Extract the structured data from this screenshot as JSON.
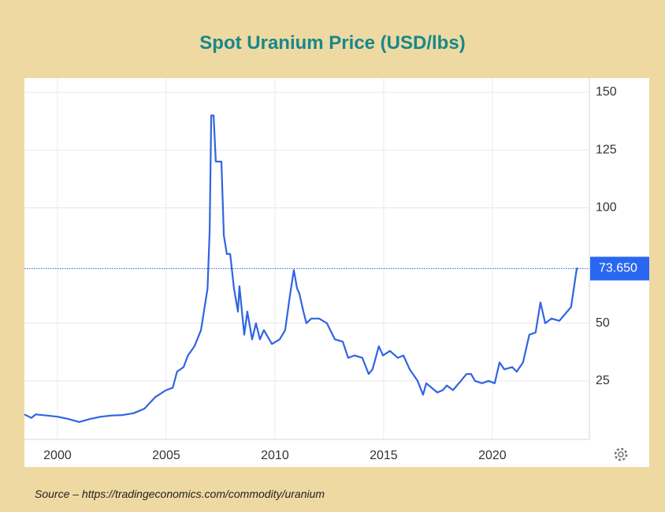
{
  "chart_data": {
    "type": "line",
    "title": "Spot Uranium Price (USD/lbs)",
    "source": "Source – https://tradingeconomics.com/commodity/uranium",
    "series": [
      {
        "name": "Spot Uranium Price",
        "color": "#3064e3",
        "x": [
          1998.48,
          1998.8,
          1999.0,
          1999.5,
          2000.0,
          2000.5,
          2001.0,
          2001.5,
          2002.0,
          2002.5,
          2003.0,
          2003.5,
          2004.0,
          2004.5,
          2005.0,
          2005.3,
          2005.5,
          2005.8,
          2006.0,
          2006.3,
          2006.6,
          2006.9,
          2007.0,
          2007.07,
          2007.18,
          2007.28,
          2007.54,
          2007.65,
          2007.79,
          2007.94,
          2008.12,
          2008.3,
          2008.37,
          2008.59,
          2008.73,
          2008.95,
          2009.13,
          2009.31,
          2009.49,
          2009.86,
          2010.22,
          2010.47,
          2010.69,
          2010.87,
          2011.02,
          2011.12,
          2011.31,
          2011.45,
          2011.67,
          2012.03,
          2012.39,
          2012.76,
          2013.12,
          2013.37,
          2013.66,
          2014.02,
          2014.31,
          2014.49,
          2014.78,
          2014.97,
          2015.29,
          2015.65,
          2015.91,
          2016.2,
          2016.56,
          2016.81,
          2016.96,
          2017.21,
          2017.47,
          2017.72,
          2017.9,
          2018.19,
          2018.55,
          2018.81,
          2019.02,
          2019.2,
          2019.53,
          2019.82,
          2020.11,
          2020.33,
          2020.55,
          2020.91,
          2021.12,
          2021.41,
          2021.7,
          2021.99,
          2022.21,
          2022.43,
          2022.72,
          2023.08,
          2023.44,
          2023.62,
          2023.88,
          2023.95
        ],
        "values": [
          10.5,
          9,
          10.5,
          10,
          9.5,
          8.5,
          7.2,
          8.5,
          9.5,
          10,
          10.2,
          11,
          13,
          18,
          21,
          22,
          29,
          31,
          36,
          40,
          47,
          65,
          90,
          140,
          140,
          120,
          120,
          88,
          80,
          80,
          65,
          55,
          66,
          45,
          55,
          43,
          50,
          43,
          47,
          41,
          43,
          47,
          62,
          73,
          65,
          63,
          55,
          50,
          52,
          52,
          50,
          43,
          42,
          35,
          36,
          35,
          28,
          30,
          40,
          36,
          38,
          35,
          36,
          30,
          25,
          19,
          24,
          22,
          20,
          21,
          23,
          21,
          25,
          28,
          28,
          25,
          24,
          25,
          24,
          33,
          30,
          31,
          29,
          33,
          45,
          46,
          59,
          50,
          52,
          51,
          55,
          57,
          73.65,
          73.65
        ]
      }
    ],
    "last_value": {
      "value": 73.65,
      "label": "73.650"
    },
    "xlim": [
      1998.48,
      2024.46
    ],
    "xticks": [
      2000,
      2005,
      2010,
      2015,
      2020
    ],
    "ylim": [
      0,
      150
    ],
    "yticks": [
      25,
      50,
      100,
      125,
      150
    ],
    "grid": true
  }
}
